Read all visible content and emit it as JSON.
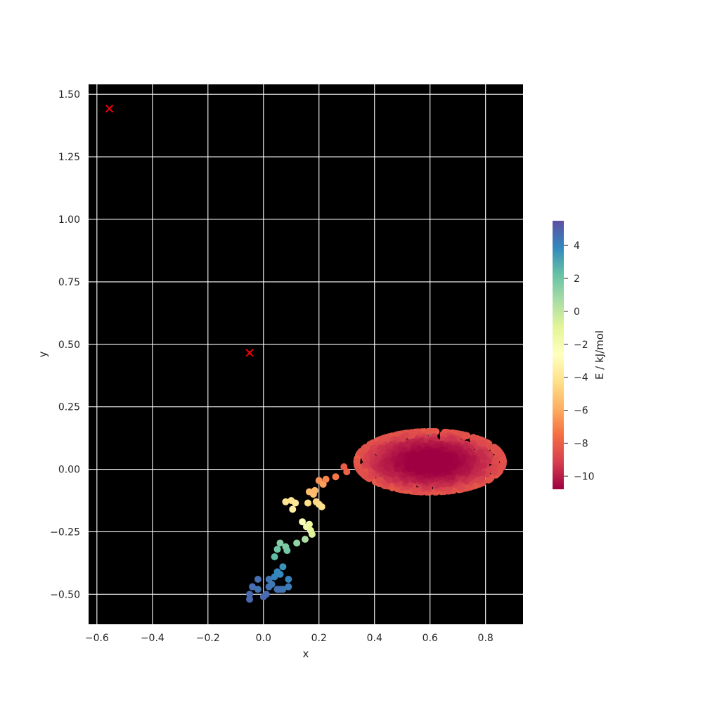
{
  "chart_data": {
    "type": "scatter",
    "title": "",
    "xlabel": "x",
    "ylabel": "y",
    "colorbar_label": "E / kJ/mol",
    "colormap": "Spectral",
    "xlim": [
      -0.63,
      0.935
    ],
    "ylim": [
      -0.62,
      1.54
    ],
    "xticks": [
      -0.6,
      -0.4,
      -0.2,
      0.0,
      0.2,
      0.4,
      0.6,
      0.8
    ],
    "xtick_labels": [
      "−0.6",
      "−0.4",
      "−0.2",
      "0.0",
      "0.2",
      "0.4",
      "0.6",
      "0.8"
    ],
    "yticks": [
      -0.5,
      -0.25,
      0.0,
      0.25,
      0.5,
      0.75,
      1.0,
      1.25,
      1.5
    ],
    "ytick_labels": [
      "−0.50",
      "−0.25",
      "0.00",
      "0.25",
      "0.50",
      "0.75",
      "1.00",
      "1.25",
      "1.50"
    ],
    "grid": true,
    "plot_background": "#000000",
    "grid_color": "#ffffff",
    "colorbar": {
      "vmin": -10.8,
      "vmax": 5.5,
      "ticks": [
        4,
        2,
        0,
        -2,
        -4,
        -6,
        -8,
        -10
      ],
      "tick_labels": [
        "4",
        "2",
        "0",
        "−2",
        "−4",
        "−6",
        "−8",
        "−10"
      ]
    },
    "markers": {
      "name": "x markers",
      "color": "#e8000b",
      "points": [
        {
          "x": -0.555,
          "y": 1.443
        },
        {
          "x": -0.05,
          "y": 0.466
        }
      ]
    },
    "cluster": {
      "description": "dense elliptical cluster of low-energy points",
      "center_x": 0.6,
      "center_y": 0.03,
      "spread_x": 0.24,
      "spread_y": 0.11,
      "energy_min": -10.8,
      "energy_edge": -8.3,
      "point_count": 1400
    },
    "path_points": [
      {
        "x": -0.05,
        "y": -0.52,
        "e": 4.8
      },
      {
        "x": -0.05,
        "y": -0.5,
        "e": 4.7
      },
      {
        "x": -0.04,
        "y": -0.47,
        "e": 4.6
      },
      {
        "x": -0.02,
        "y": -0.48,
        "e": 4.5
      },
      {
        "x": -0.02,
        "y": -0.44,
        "e": 4.6
      },
      {
        "x": 0.0,
        "y": -0.51,
        "e": 4.8
      },
      {
        "x": 0.01,
        "y": -0.5,
        "e": 4.7
      },
      {
        "x": 0.02,
        "y": -0.47,
        "e": 4.5
      },
      {
        "x": 0.02,
        "y": -0.44,
        "e": 4.4
      },
      {
        "x": 0.03,
        "y": -0.46,
        "e": 4.3
      },
      {
        "x": 0.04,
        "y": -0.43,
        "e": 4.0
      },
      {
        "x": 0.05,
        "y": -0.41,
        "e": 3.9
      },
      {
        "x": 0.05,
        "y": -0.48,
        "e": 4.5
      },
      {
        "x": 0.06,
        "y": -0.48,
        "e": 4.6
      },
      {
        "x": 0.07,
        "y": -0.48,
        "e": 4.4
      },
      {
        "x": 0.06,
        "y": -0.42,
        "e": 3.8
      },
      {
        "x": 0.07,
        "y": -0.39,
        "e": 3.6
      },
      {
        "x": 0.09,
        "y": -0.44,
        "e": 4.0
      },
      {
        "x": 0.09,
        "y": -0.47,
        "e": 4.2
      },
      {
        "x": 0.04,
        "y": -0.35,
        "e": 2.4
      },
      {
        "x": 0.05,
        "y": -0.32,
        "e": 2.0
      },
      {
        "x": 0.06,
        "y": -0.295,
        "e": 1.6
      },
      {
        "x": 0.08,
        "y": -0.31,
        "e": 1.7
      },
      {
        "x": 0.085,
        "y": -0.325,
        "e": 1.9
      },
      {
        "x": 0.12,
        "y": -0.295,
        "e": 1.2
      },
      {
        "x": 0.15,
        "y": -0.28,
        "e": 0.6
      },
      {
        "x": 0.14,
        "y": -0.21,
        "e": -2.3
      },
      {
        "x": 0.155,
        "y": -0.23,
        "e": -1.9
      },
      {
        "x": 0.165,
        "y": -0.22,
        "e": -1.6
      },
      {
        "x": 0.17,
        "y": -0.245,
        "e": -1.2
      },
      {
        "x": 0.175,
        "y": -0.26,
        "e": -0.8
      },
      {
        "x": 0.08,
        "y": -0.13,
        "e": -4.0
      },
      {
        "x": 0.1,
        "y": -0.125,
        "e": -4.2
      },
      {
        "x": 0.105,
        "y": -0.16,
        "e": -3.6
      },
      {
        "x": 0.115,
        "y": -0.135,
        "e": -3.8
      },
      {
        "x": 0.16,
        "y": -0.135,
        "e": -4.3
      },
      {
        "x": 0.165,
        "y": -0.09,
        "e": -5.5
      },
      {
        "x": 0.18,
        "y": -0.1,
        "e": -5.3
      },
      {
        "x": 0.185,
        "y": -0.085,
        "e": -5.6
      },
      {
        "x": 0.19,
        "y": -0.13,
        "e": -4.6
      },
      {
        "x": 0.2,
        "y": -0.14,
        "e": -4.4
      },
      {
        "x": 0.21,
        "y": -0.15,
        "e": -4.2
      },
      {
        "x": 0.2,
        "y": -0.045,
        "e": -6.6
      },
      {
        "x": 0.215,
        "y": -0.06,
        "e": -6.3
      },
      {
        "x": 0.225,
        "y": -0.04,
        "e": -6.9
      },
      {
        "x": 0.26,
        "y": -0.03,
        "e": -7.3
      },
      {
        "x": 0.3,
        "y": -0.01,
        "e": -7.9
      },
      {
        "x": 0.29,
        "y": 0.01,
        "e": -8.1
      }
    ]
  }
}
